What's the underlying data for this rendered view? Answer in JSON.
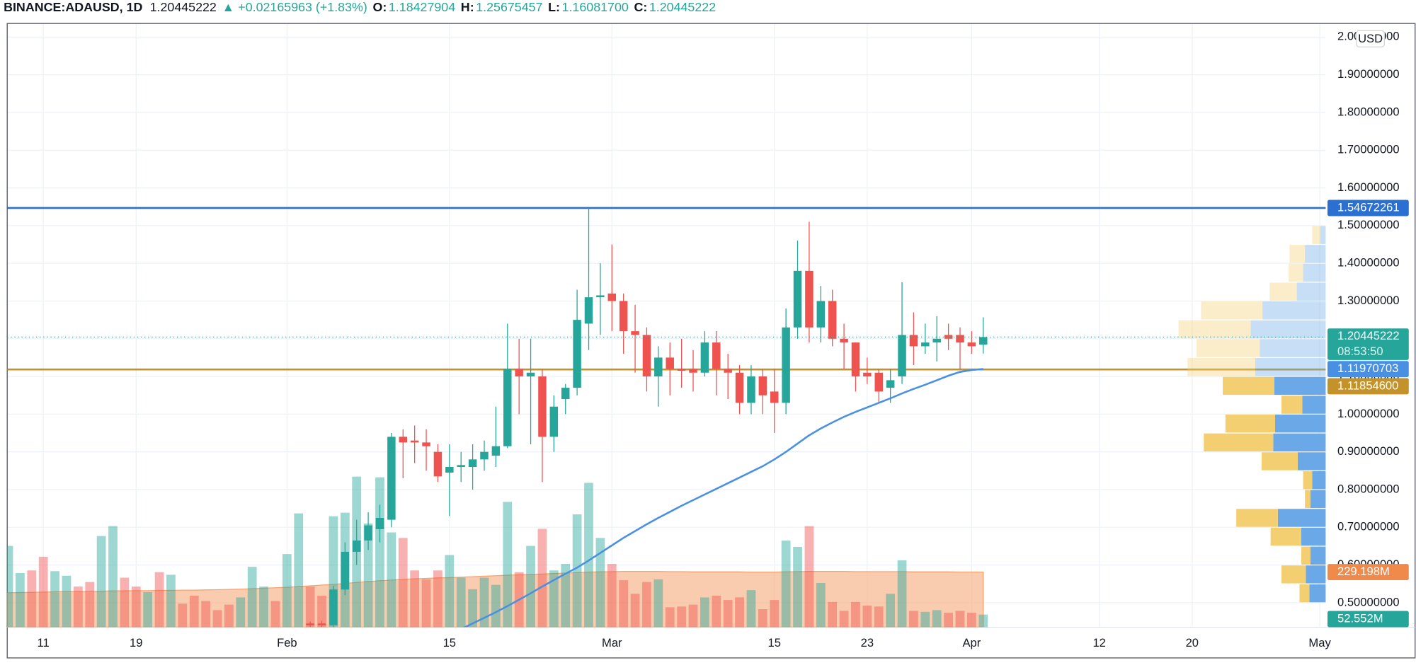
{
  "chart_data": {
    "type": "candlestick",
    "title": "BINANCE:ADAUSD, 1D",
    "last": "1.20445222",
    "arrow": "▲",
    "change": "+0.02165963 (+1.83%)",
    "ohlc": [
      {
        "key": "O:",
        "value": "1.18427904"
      },
      {
        "key": "H:",
        "value": "1.25675457"
      },
      {
        "key": "L:",
        "value": "1.16081700"
      },
      {
        "key": "C:",
        "value": "1.20445222"
      }
    ],
    "currency": "USD",
    "countdown": "08:53:50",
    "up_color": "#26a69a",
    "down_color": "#ef5350",
    "categories": [
      null,
      null,
      null,
      "11",
      null,
      null,
      null,
      null,
      null,
      null,
      null,
      "19",
      null,
      null,
      null,
      null,
      null,
      null,
      null,
      null,
      null,
      null,
      null,
      null,
      "Feb",
      null,
      null,
      null,
      null,
      null,
      null,
      null,
      null,
      null,
      null,
      null,
      null,
      null,
      "15",
      null,
      null,
      null,
      null,
      null,
      null,
      null,
      null,
      null,
      null,
      null,
      null,
      null,
      "Mar",
      null,
      null,
      null,
      null,
      null,
      null,
      null,
      null,
      null,
      null,
      null,
      null,
      null,
      "15",
      null,
      null,
      null,
      null,
      null,
      null,
      null,
      "23",
      null,
      null,
      null,
      null,
      null,
      null,
      null,
      null,
      "Apr",
      null,
      null,
      null,
      null,
      null,
      null,
      null,
      null,
      null,
      null,
      "12",
      null,
      null,
      null,
      null,
      null,
      null,
      null,
      "20",
      null,
      null,
      null,
      null,
      null,
      null,
      null,
      null,
      null,
      null,
      "May"
    ],
    "open": [
      null,
      null,
      null,
      null,
      null,
      null,
      null,
      null,
      null,
      null,
      null,
      null,
      null,
      null,
      null,
      null,
      null,
      null,
      null,
      null,
      null,
      null,
      null,
      null,
      null,
      null,
      0.445,
      0.445,
      0.44,
      0.535,
      0.635,
      0.665,
      0.695,
      0.72,
      0.94,
      0.93,
      0.925,
      0.9,
      0.845,
      0.86,
      0.86,
      0.88,
      0.89,
      0.915,
      1.12,
      1.1,
      1.1,
      0.94,
      1.04,
      1.07,
      1.24,
      1.31,
      1.32,
      1.3,
      1.22,
      1.21,
      1.1,
      1.15,
      1.12,
      1.12,
      1.11,
      1.19,
      1.12,
      1.11,
      1.03,
      1.1,
      1.06,
      1.03,
      1.23,
      1.38,
      1.23,
      1.3,
      1.2,
      1.19,
      1.11,
      1.11,
      1.07,
      1.1,
      1.21,
      1.18,
      1.19,
      1.21,
      1.21,
      1.19,
      1.18427904,
      null,
      null,
      null,
      null,
      null,
      null,
      null,
      null,
      null,
      null,
      null,
      null,
      null,
      null,
      null,
      null,
      null,
      null,
      null,
      null,
      null,
      null,
      null,
      null,
      null,
      null,
      null,
      null,
      null
    ],
    "high": [
      null,
      null,
      null,
      null,
      null,
      null,
      null,
      null,
      null,
      null,
      null,
      null,
      null,
      null,
      null,
      null,
      null,
      null,
      null,
      null,
      null,
      null,
      null,
      null,
      null,
      null,
      0.45,
      0.452,
      0.545,
      0.66,
      0.72,
      0.74,
      0.76,
      0.95,
      0.96,
      0.97,
      0.96,
      0.92,
      0.92,
      0.9,
      0.92,
      0.93,
      1.02,
      1.24,
      1.2,
      1.2,
      1.12,
      1.05,
      1.08,
      1.33,
      1.5467,
      1.4,
      1.45,
      1.32,
      1.29,
      1.23,
      1.18,
      1.19,
      1.2,
      1.17,
      1.22,
      1.22,
      1.16,
      1.13,
      1.13,
      1.12,
      1.12,
      1.28,
      1.46,
      1.51,
      1.34,
      1.33,
      1.24,
      1.19,
      1.15,
      1.12,
      1.12,
      1.35,
      1.27,
      1.24,
      1.26,
      1.24,
      1.23,
      1.22,
      1.25675457,
      null,
      null,
      null,
      null,
      null,
      null,
      null,
      null,
      null,
      null,
      null,
      null,
      null,
      null,
      null,
      null,
      null,
      null,
      null,
      null,
      null,
      null,
      null,
      null,
      null,
      null,
      null,
      null,
      null
    ],
    "low": [
      null,
      null,
      null,
      null,
      null,
      null,
      null,
      null,
      null,
      null,
      null,
      null,
      null,
      null,
      null,
      null,
      null,
      null,
      null,
      null,
      null,
      null,
      null,
      null,
      null,
      null,
      0.436,
      0.436,
      0.43,
      0.52,
      0.6,
      0.64,
      0.66,
      0.7,
      0.83,
      0.87,
      0.85,
      0.82,
      0.73,
      0.82,
      0.8,
      0.85,
      0.86,
      0.91,
      1.0,
      0.92,
      0.82,
      0.9,
      1.0,
      1.05,
      1.17,
      1.21,
      1.22,
      1.16,
      1.11,
      1.06,
      1.02,
      1.05,
      1.07,
      1.06,
      1.1,
      1.05,
      1.04,
      1.0,
      1.0,
      1.0,
      0.95,
      1.0,
      1.2,
      1.19,
      1.19,
      1.18,
      1.12,
      1.06,
      1.08,
      1.03,
      1.03,
      1.08,
      1.13,
      1.16,
      1.14,
      1.17,
      1.12,
      1.16,
      1.160817,
      null,
      null,
      null,
      null,
      null,
      null,
      null,
      null,
      null,
      null,
      null,
      null,
      null,
      null,
      null,
      null,
      null,
      null,
      null,
      null,
      null,
      null,
      null,
      null,
      null,
      null,
      null,
      null,
      null
    ],
    "close": [
      null,
      null,
      null,
      null,
      null,
      null,
      null,
      null,
      null,
      null,
      null,
      null,
      null,
      null,
      null,
      null,
      null,
      null,
      null,
      null,
      null,
      null,
      null,
      null,
      null,
      null,
      0.44,
      0.44,
      0.535,
      0.635,
      0.665,
      0.705,
      0.725,
      0.94,
      0.925,
      0.925,
      0.915,
      0.835,
      0.86,
      0.865,
      0.88,
      0.9,
      0.915,
      1.12,
      1.1,
      1.11,
      0.94,
      1.02,
      1.07,
      1.25,
      1.31,
      1.315,
      1.3,
      1.22,
      1.21,
      1.1,
      1.15,
      1.12,
      1.115,
      1.11,
      1.19,
      1.12,
      1.11,
      1.03,
      1.1,
      1.05,
      1.03,
      1.23,
      1.38,
      1.23,
      1.3,
      1.2,
      1.19,
      1.1,
      1.1,
      1.06,
      1.09,
      1.21,
      1.18,
      1.19,
      1.2,
      1.2,
      1.19,
      1.18,
      1.20445222,
      null,
      null,
      null,
      null,
      null,
      null,
      null,
      null,
      null,
      null,
      null,
      null,
      null,
      null,
      null,
      null,
      null,
      null,
      null,
      null,
      null,
      null,
      null,
      null,
      null,
      null,
      null,
      null,
      null
    ],
    "ma": {
      "color": "#4a90e2",
      "label": "1.11970703",
      "values": [
        null,
        null,
        null,
        null,
        null,
        null,
        null,
        null,
        null,
        null,
        null,
        null,
        null,
        null,
        null,
        null,
        null,
        null,
        null,
        null,
        null,
        null,
        null,
        null,
        null,
        null,
        null,
        null,
        null,
        null,
        null,
        null,
        null,
        null,
        null,
        null,
        null,
        null,
        null,
        0.43,
        0.445,
        0.46,
        0.475,
        0.491,
        0.508,
        0.525,
        0.543,
        0.56,
        0.577,
        0.593,
        0.612,
        0.632,
        0.652,
        0.672,
        0.69,
        0.708,
        0.725,
        0.741,
        0.757,
        0.772,
        0.787,
        0.802,
        0.817,
        0.832,
        0.847,
        0.862,
        0.88,
        0.9,
        0.922,
        0.944,
        0.962,
        0.978,
        0.993,
        1.006,
        1.018,
        1.03,
        1.042,
        1.055,
        1.067,
        1.078,
        1.09,
        1.102,
        1.112,
        1.117,
        1.11970703,
        null,
        null,
        null,
        null,
        null,
        null,
        null,
        null,
        null,
        null,
        null,
        null,
        null,
        null,
        null,
        null,
        null,
        null,
        null,
        null,
        null,
        null,
        null,
        null,
        null,
        null,
        null,
        null,
        null
      ]
    },
    "volume": [
      338,
      225,
      236,
      293,
      233,
      214,
      169,
      188,
      379,
      420,
      206,
      169,
      146,
      229,
      218,
      98,
      131,
      109,
      71,
      94,
      124,
      251,
      169,
      109,
      304,
      473,
      169,
      131,
      461,
      476,
      626,
      431,
      623,
      394,
      371,
      236,
      199,
      236,
      300,
      206,
      158,
      206,
      176,
      521,
      229,
      338,
      409,
      236,
      263,
      469,
      600,
      371,
      263,
      195,
      139,
      188,
      199,
      83,
      86,
      94,
      124,
      131,
      113,
      124,
      154,
      75,
      113,
      360,
      334,
      420,
      184,
      105,
      68,
      105,
      90,
      86,
      139,
      278,
      68,
      64,
      71,
      60,
      68,
      60,
      52.552,
      null,
      null,
      null,
      null,
      null,
      null,
      null,
      null,
      null,
      null,
      null,
      null,
      null,
      null,
      null,
      null,
      null,
      null,
      null,
      null,
      null,
      null,
      null,
      null,
      null,
      null,
      null,
      null,
      null
    ],
    "volume_label": "52.552M",
    "volume_colors": [
      "#26a69a",
      "#26a69a",
      "#ef5350",
      "#ef5350",
      "#26a69a",
      "#26a69a",
      "#ef5350",
      "#ef5350",
      "#26a69a",
      "#26a69a",
      "#ef5350",
      "#ef5350",
      "#26a69a",
      "#ef5350",
      "#26a69a",
      "#ef5350",
      "#ef5350",
      "#ef5350",
      "#ef5350",
      "#ef5350",
      "#26a69a",
      "#26a69a",
      "#26a69a",
      "#ef5350",
      "#26a69a",
      "#26a69a",
      "#ef5350",
      "#ef5350",
      "#26a69a",
      "#26a69a",
      "#26a69a",
      "#26a69a",
      "#26a69a",
      "#26a69a",
      "#ef5350",
      "#ef5350",
      "#ef5350",
      "#ef5350",
      "#26a69a",
      "#26a69a",
      "#26a69a",
      "#26a69a",
      "#26a69a",
      "#26a69a",
      "#ef5350",
      "#26a69a",
      "#ef5350",
      "#26a69a",
      "#26a69a",
      "#26a69a",
      "#26a69a",
      "#26a69a",
      "#ef5350",
      "#ef5350",
      "#ef5350",
      "#ef5350",
      "#26a69a",
      "#ef5350",
      "#ef5350",
      "#ef5350",
      "#26a69a",
      "#ef5350",
      "#ef5350",
      "#ef5350",
      "#26a69a",
      "#ef5350",
      "#ef5350",
      "#26a69a",
      "#26a69a",
      "#ef5350",
      "#26a69a",
      "#ef5350",
      "#ef5350",
      "#ef5350",
      "#ef5350",
      "#ef5350",
      "#26a69a",
      "#26a69a",
      "#ef5350",
      "#26a69a",
      "#26a69a",
      "#ef5350",
      "#ef5350",
      "#ef5350",
      "#26a69a",
      null,
      null,
      null,
      null,
      null,
      null,
      null,
      null,
      null,
      null,
      null,
      null,
      null,
      null,
      null,
      null,
      null,
      null,
      null,
      null,
      null,
      null,
      null,
      null,
      null,
      null,
      null,
      null,
      null
    ],
    "volume_ma": {
      "color": "#f5a36e",
      "label": "229.198M",
      "values": [
        143,
        144,
        145,
        146,
        147,
        148,
        148,
        149,
        150,
        151,
        151,
        152,
        152,
        153,
        153,
        154,
        154,
        155,
        156,
        157,
        158,
        160,
        162,
        164,
        166,
        169,
        172,
        175,
        178,
        182,
        186,
        190,
        193,
        196,
        199,
        201,
        203,
        205,
        206,
        208,
        210,
        212,
        214,
        216,
        218,
        220,
        221,
        223,
        225,
        227,
        229,
        230,
        231,
        232,
        232,
        232,
        232,
        231,
        231,
        230,
        230,
        230,
        230,
        230,
        229,
        229,
        229,
        230,
        231,
        232,
        232,
        232,
        232,
        231,
        231,
        231,
        231,
        231,
        230,
        230,
        230,
        230,
        229.5,
        229.3,
        229.198,
        null,
        null,
        null,
        null,
        null,
        null,
        null,
        null,
        null,
        null,
        null,
        null,
        null,
        null,
        null,
        null,
        null,
        null,
        null,
        null,
        null,
        null,
        null,
        null,
        null,
        null,
        null,
        null,
        null
      ]
    },
    "lines": [
      {
        "value": 1.54672261,
        "label": "1.54672261",
        "color": "#2b6fd0"
      },
      {
        "value": 1.118546,
        "label": "1.11854600",
        "color": "#c4922a"
      }
    ],
    "profile": {
      "bins": [
        0.5,
        0.55,
        0.6,
        0.65,
        0.7,
        0.75,
        0.8,
        0.85,
        0.9,
        0.95,
        1.0,
        1.05,
        1.1,
        1.15,
        1.2,
        1.25,
        1.3,
        1.35,
        1.4,
        1.45,
        1.5
      ],
      "up": [
        18,
        22,
        17,
        27,
        53,
        17,
        15,
        31,
        58,
        56,
        26,
        57,
        78,
        73,
        83,
        70,
        32,
        25,
        23,
        6
      ],
      "down": [
        11,
        27,
        10,
        34,
        46,
        6,
        10,
        40,
        77,
        55,
        23,
        57,
        75,
        70,
        80,
        68,
        30,
        16,
        17,
        9
      ],
      "value_area": [
        0.5,
        1.1
      ],
      "up_color": "#6aa8e8",
      "down_color": "#f4cf72"
    },
    "ylim": [
      0.435,
      2.036
    ],
    "y2lim": [
      0,
      2509
    ],
    "yticks": [
      {
        "value": 0.5,
        "label": "0.50000000"
      },
      {
        "value": 0.6,
        "label": "0.60000000"
      },
      {
        "value": 0.7,
        "label": "0.70000000"
      },
      {
        "value": 0.8,
        "label": "0.80000000"
      },
      {
        "value": 0.9,
        "label": "0.90000000"
      },
      {
        "value": 1.0,
        "label": "1.00000000"
      },
      {
        "value": 1.1,
        "label": "1.10000000"
      },
      {
        "value": 1.2,
        "label": "1.20000000"
      },
      {
        "value": 1.3,
        "label": "1.30000000"
      },
      {
        "value": 1.4,
        "label": "1.40000000"
      },
      {
        "value": 1.5,
        "label": "1.50000000"
      },
      {
        "value": 1.6,
        "label": "1.60000000"
      },
      {
        "value": 1.7,
        "label": "1.70000000"
      },
      {
        "value": 1.8,
        "label": "1.80000000"
      },
      {
        "value": 1.9,
        "label": "1.90000000"
      },
      {
        "value": 2.0,
        "label": "2.00000000"
      }
    ],
    "grid": true
  }
}
